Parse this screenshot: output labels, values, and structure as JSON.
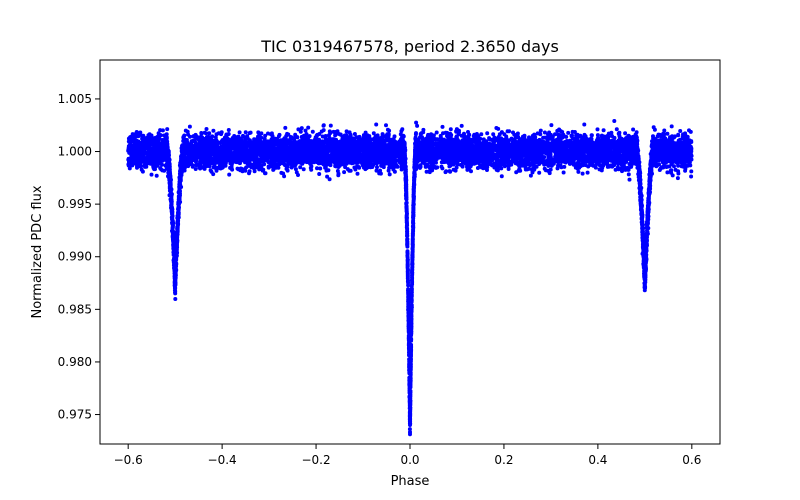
{
  "chart_data": {
    "type": "scatter",
    "title": "TIC 0319467578, period 2.3650 days",
    "xlabel": "Phase",
    "ylabel": "Normalized PDC flux",
    "xlim": [
      -0.66,
      0.66
    ],
    "ylim": [
      0.9722,
      1.0087
    ],
    "x_ticks": [
      -0.6,
      -0.4,
      -0.2,
      0.0,
      0.2,
      0.4,
      0.6
    ],
    "x_tick_labels": [
      "−0.6",
      "−0.4",
      "−0.2",
      "0.0",
      "0.2",
      "0.4",
      "0.6"
    ],
    "y_ticks": [
      0.975,
      0.98,
      0.985,
      0.99,
      0.995,
      1.0,
      1.005
    ],
    "y_tick_labels": [
      "0.975",
      "0.980",
      "0.985",
      "0.990",
      "0.995",
      "1.000",
      "1.005"
    ],
    "grid": false,
    "series": [
      {
        "name": "PDC flux",
        "color": "#0000ff",
        "marker": "circle",
        "phase_range": [
          -0.6,
          0.6
        ],
        "baseline_flux": 1.0,
        "scatter_band": [
          0.9975,
          1.0035
        ],
        "primary_eclipse": {
          "phase": 0.0,
          "min_flux": 0.9738,
          "half_width": 0.012
        },
        "secondary_eclipses": [
          {
            "phase": -0.5,
            "min_flux": 0.9872,
            "half_width": 0.018
          },
          {
            "phase": 0.5,
            "min_flux": 0.9872,
            "half_width": 0.018
          }
        ]
      }
    ]
  }
}
